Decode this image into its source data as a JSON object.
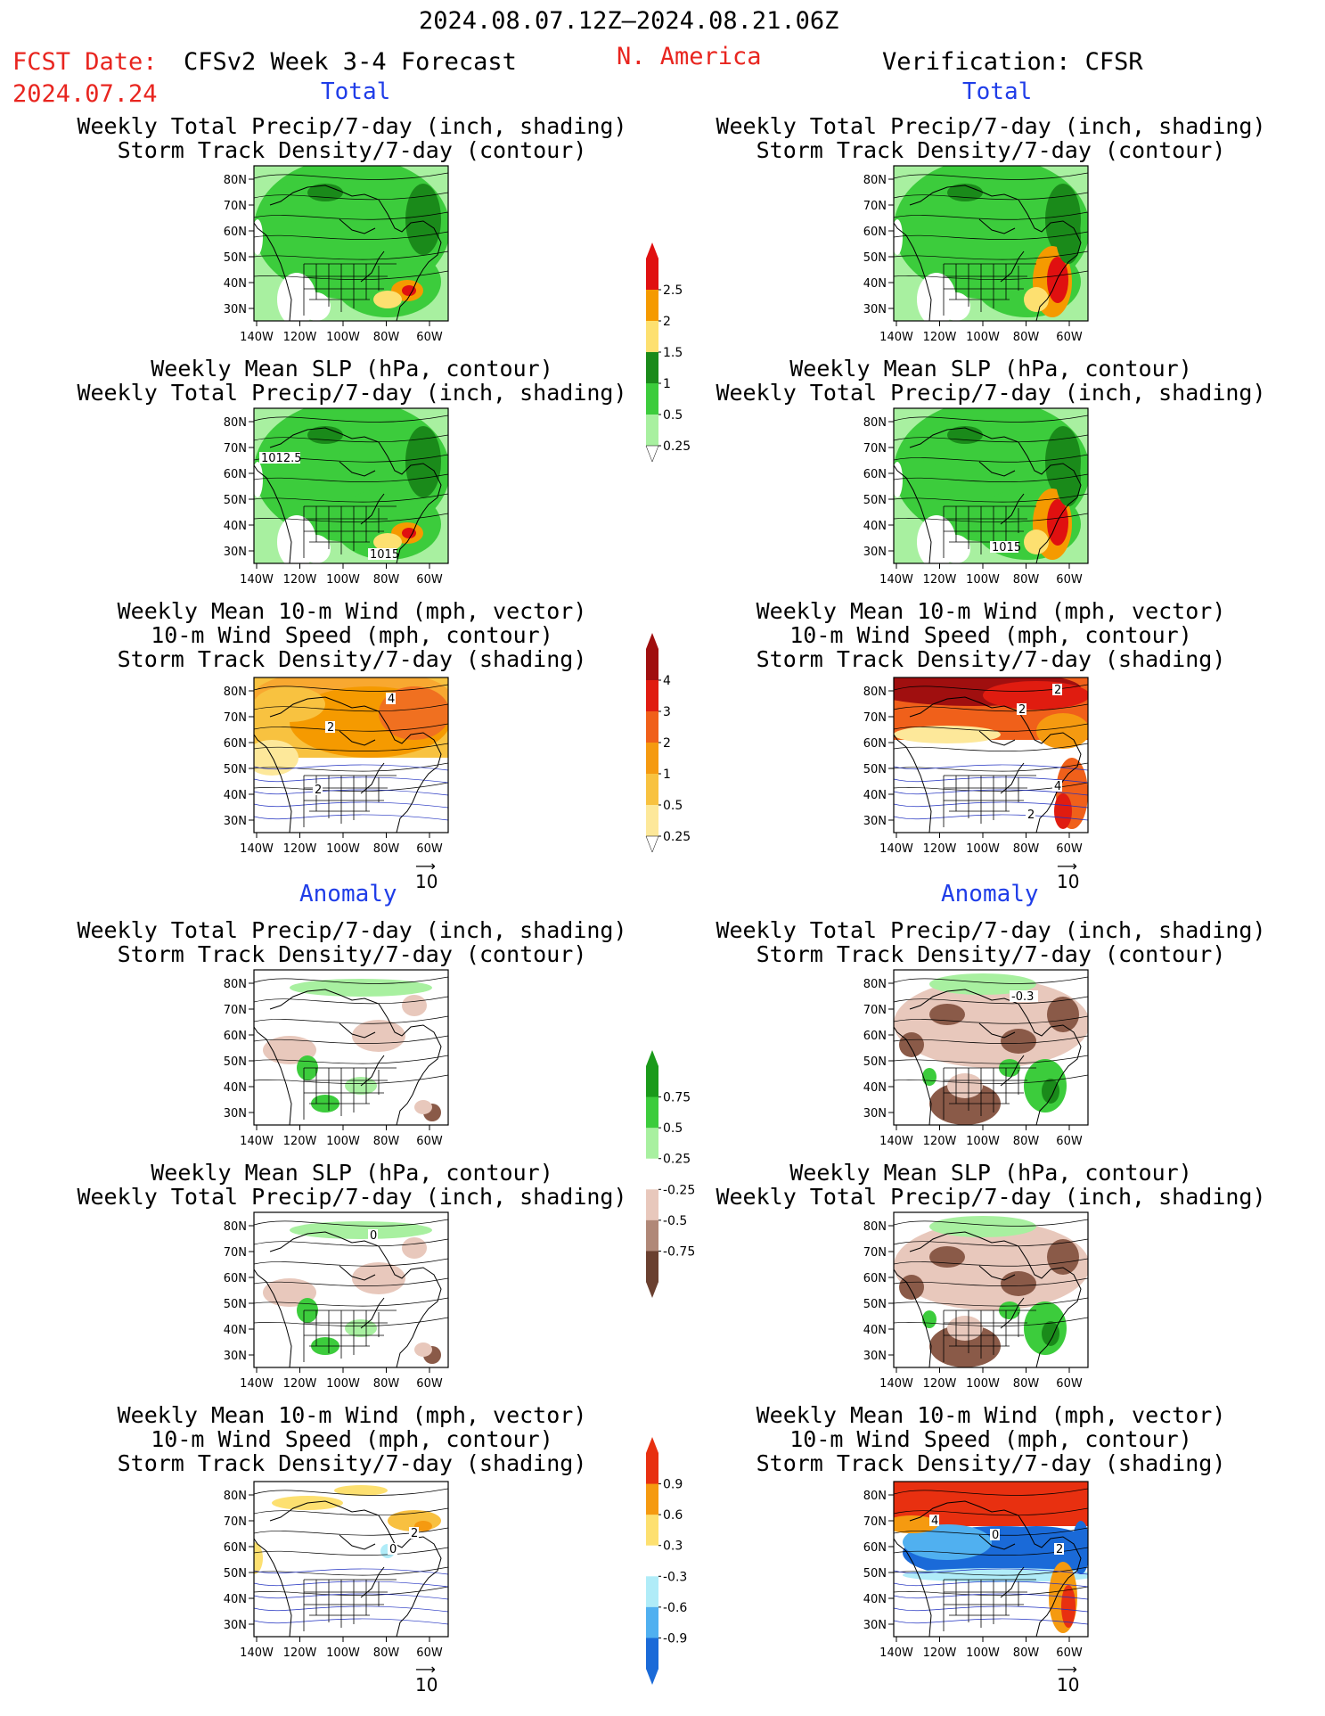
{
  "header": {
    "date_range": "2024.08.07.12Z–2024.08.21.06Z",
    "fcst_label": "FCST Date:",
    "fcst_date": "2024.07.24",
    "model_title": "CFSv2 Week 3-4 Forecast",
    "region": "N. America",
    "verification": "Verification: CFSR"
  },
  "sections": {
    "total": "Total",
    "anomaly": "Anomaly"
  },
  "titles": {
    "precip_storm": [
      "Weekly Total Precip/7-day (inch, shading)",
      "Storm Track Density/7-day (contour)"
    ],
    "slp_precip": [
      "Weekly Mean SLP (hPa, contour)",
      "Weekly Total Precip/7-day (inch, shading)"
    ],
    "wind": [
      "Weekly Mean 10-m Wind (mph, vector)",
      "10-m Wind Speed (mph, contour)",
      "Storm Track Density/7-day (shading)"
    ]
  },
  "axes": {
    "lat": [
      "80N",
      "70N",
      "60N",
      "50N",
      "40N",
      "30N"
    ],
    "lon": [
      "140W",
      "120W",
      "100W",
      "80W",
      "60W"
    ]
  },
  "vector_ref": "10",
  "map_labels": {
    "slp_fc": [
      "1012.5",
      "1015"
    ],
    "slp_ver": [
      "1015"
    ],
    "wind_fc": [
      "4",
      "2",
      "2"
    ],
    "wind_ver": [
      "2",
      "2",
      "4",
      "2"
    ],
    "anom_fc": [
      "0"
    ],
    "anom_ver": [
      "-0.3"
    ],
    "anom_wind_fc": [
      "2",
      "0"
    ],
    "anom_wind_ver": [
      "4",
      "0",
      "2"
    ]
  },
  "colorbars": [
    {
      "labels": [
        "2.5",
        "2",
        "1.5",
        "1",
        "0.5",
        "0.25"
      ],
      "colors": [
        "#e01010",
        "#f59a00",
        "#fde070",
        "#1a8a1a",
        "#3ccc3c",
        "#a8f0a0"
      ]
    },
    {
      "labels": [
        "4",
        "3",
        "2",
        "1",
        "0.5",
        "0.25"
      ],
      "colors": [
        "#a00f0f",
        "#e01c10",
        "#f0601a",
        "#f59a10",
        "#f8c240",
        "#fde89a"
      ]
    },
    {
      "labels": [
        "0.75",
        "0.5",
        "0.25",
        "-0.25",
        "-0.5",
        "-0.75"
      ],
      "colors": [
        "#1a9a1a",
        "#3ccc3c",
        "#a8f0a0",
        "#ffffff",
        "#e8c8bc",
        "#b08878",
        "#6a4030"
      ]
    },
    {
      "labels": [
        "0.9",
        "0.6",
        "0.3",
        "-0.3",
        "-0.6",
        "-0.9"
      ],
      "colors": [
        "#e83010",
        "#f59a10",
        "#fde070",
        "#ffffff",
        "#b0ecf8",
        "#50b0f0",
        "#1a6ad8"
      ]
    }
  ],
  "colors": {
    "green_light": "#a8f0a0",
    "green": "#3ccc3c",
    "green_dark": "#1a8a1a",
    "orange": "#f59a00",
    "red": "#e01010",
    "brown_light": "#e8c8bc",
    "brown": "#8a5a48",
    "blue_dark": "#1a6ad8"
  }
}
